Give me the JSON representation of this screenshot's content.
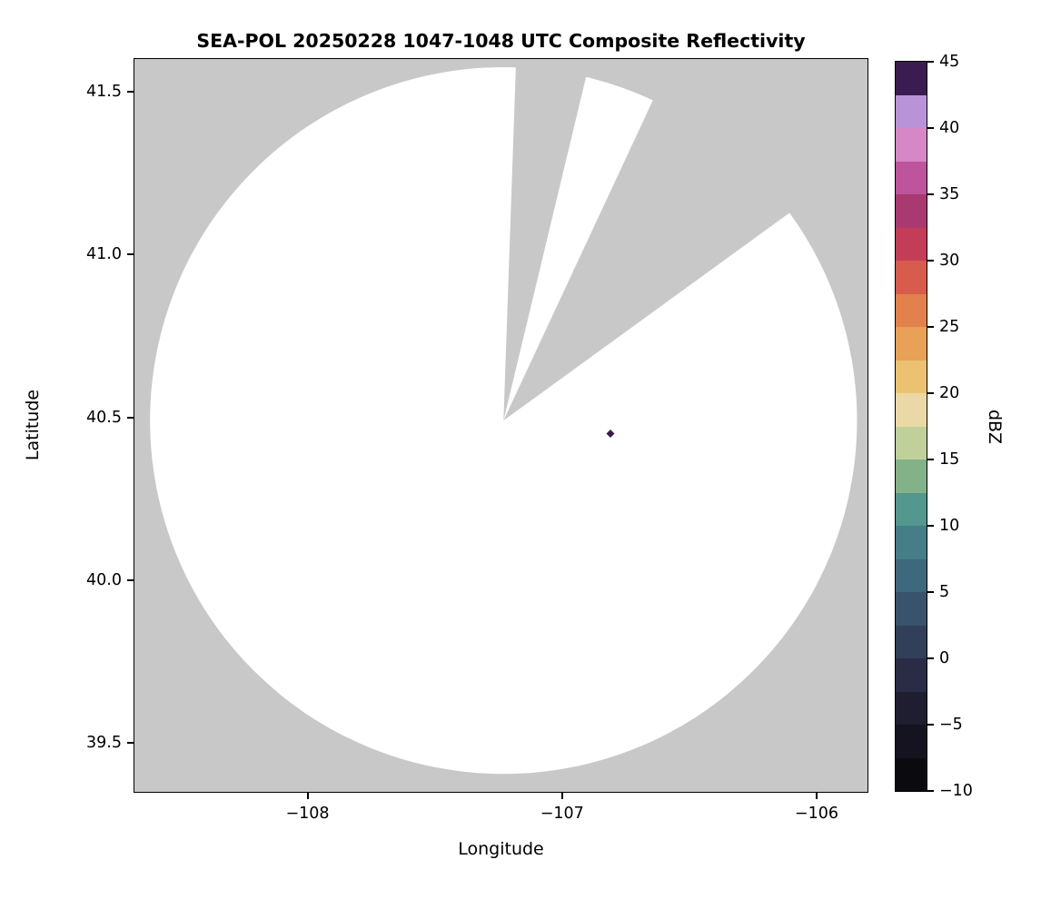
{
  "figure": {
    "background": "#ffffff"
  },
  "chart_data": {
    "type": "heatmap",
    "title": "SEA-POL 20250228 1047-1048 UTC Composite Reflectivity",
    "xlabel": "Longitude",
    "ylabel": "Latitude",
    "xlim": [
      -108.68,
      -105.8
    ],
    "ylim": [
      39.35,
      41.6
    ],
    "grid": false,
    "xticks": {
      "values": [
        -108,
        -107,
        -106
      ],
      "labels": [
        "−108",
        "−107",
        "−106"
      ]
    },
    "yticks": {
      "values": [
        41.5,
        41.0,
        40.5,
        40.0,
        39.5
      ],
      "labels": [
        "41.5",
        "41.0",
        "40.5",
        "40.0",
        "39.5"
      ]
    },
    "radar_coverage": {
      "description": "White circular radar coverage area on gray no-data background with two gray blocked azimuth sectors radiating from the radar site",
      "center_lon": -107.23,
      "center_lat": 40.49,
      "radius_deg_lat": 1.085,
      "blocked_sectors_azimuth_deg": [
        [
          2,
          13.5
        ],
        [
          25,
          54
        ]
      ],
      "coverage_color": "#ffffff",
      "nodata_color": "#c8c8c8"
    },
    "echoes": [
      {
        "lon": -106.81,
        "lat": 40.45,
        "dbz": 45
      }
    ],
    "colorbar": {
      "label": "dBZ",
      "min": -10,
      "max": 45,
      "orientation": "vertical",
      "position": "right",
      "ticks": {
        "values": [
          45,
          40,
          35,
          30,
          25,
          20,
          15,
          10,
          5,
          0,
          -5,
          -10
        ],
        "labels": [
          "45",
          "40",
          "35",
          "30",
          "25",
          "20",
          "15",
          "10",
          "5",
          "0",
          "−5",
          "−10"
        ]
      },
      "segments_bottom_to_top": [
        "#0b0a0e",
        "#15131f",
        "#1f1d30",
        "#292c44",
        "#313f59",
        "#38536b",
        "#3e687b",
        "#457e87",
        "#54978e",
        "#83b289",
        "#c0d09a",
        "#ead9a6",
        "#ecc272",
        "#e8a157",
        "#e2814b",
        "#d75c4b",
        "#c33d59",
        "#a93a71",
        "#bd549c",
        "#d687c5",
        "#b993d8",
        "#3b1c51"
      ]
    }
  }
}
